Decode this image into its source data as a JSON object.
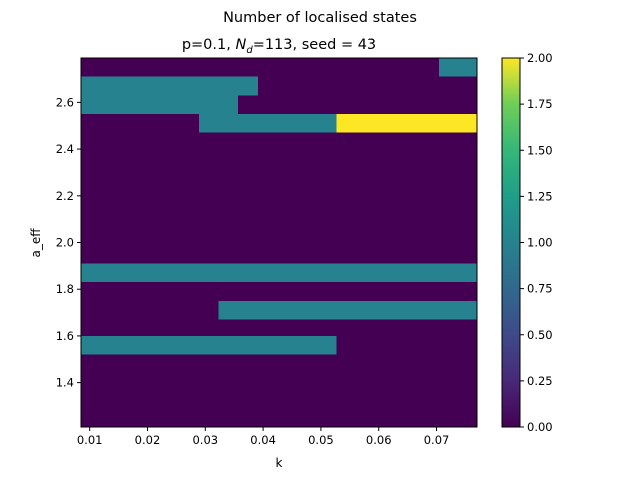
{
  "chart_data": {
    "type": "heatmap",
    "suptitle": "Number of localised states",
    "title_prefix": "p=0.1, ",
    "title_nd_main": "N",
    "title_nd_sub": "d",
    "title_suffix": "=113, seed = 43",
    "xlabel": "k",
    "ylabel": "a_eff",
    "xlim": [
      0.0085,
      0.077
    ],
    "ylim": [
      1.21,
      2.79
    ],
    "xticks": [
      0.01,
      0.02,
      0.03,
      0.04,
      0.05,
      0.06,
      0.07
    ],
    "xtick_labels": [
      "0.01",
      "0.02",
      "0.03",
      "0.04",
      "0.05",
      "0.06",
      "0.07"
    ],
    "yticks": [
      1.4,
      1.6,
      1.8,
      2.0,
      2.2,
      2.4,
      2.6
    ],
    "ytick_labels": [
      "1.4",
      "1.6",
      "1.8",
      "2.0",
      "2.2",
      "2.4",
      "2.6"
    ],
    "colorbar": {
      "vmin": 0.0,
      "vmax": 2.0,
      "ticks": [
        0.0,
        0.25,
        0.5,
        0.75,
        1.0,
        1.25,
        1.5,
        1.75,
        2.0
      ],
      "tick_labels": [
        "0.00",
        "0.25",
        "0.50",
        "0.75",
        "1.00",
        "1.25",
        "1.50",
        "1.75",
        "2.00"
      ],
      "colormap": "viridis"
    },
    "background_value": 0,
    "cells": [
      {
        "k": [
          0.0704,
          0.077
        ],
        "a": [
          2.71,
          2.79
        ],
        "value": 1
      },
      {
        "k": [
          0.0085,
          0.0391
        ],
        "a": [
          2.63,
          2.71
        ],
        "value": 1
      },
      {
        "k": [
          0.0085,
          0.0357
        ],
        "a": [
          2.55,
          2.63
        ],
        "value": 1
      },
      {
        "k": [
          0.0289,
          0.0527
        ],
        "a": [
          2.47,
          2.55
        ],
        "value": 1
      },
      {
        "k": [
          0.0527,
          0.077
        ],
        "a": [
          2.47,
          2.55
        ],
        "value": 2
      },
      {
        "k": [
          0.0085,
          0.077
        ],
        "a": [
          1.83,
          1.91
        ],
        "value": 1
      },
      {
        "k": [
          0.0323,
          0.077
        ],
        "a": [
          1.67,
          1.75
        ],
        "value": 1
      },
      {
        "k": [
          0.0085,
          0.0527
        ],
        "a": [
          1.52,
          1.6
        ],
        "value": 1
      }
    ]
  }
}
